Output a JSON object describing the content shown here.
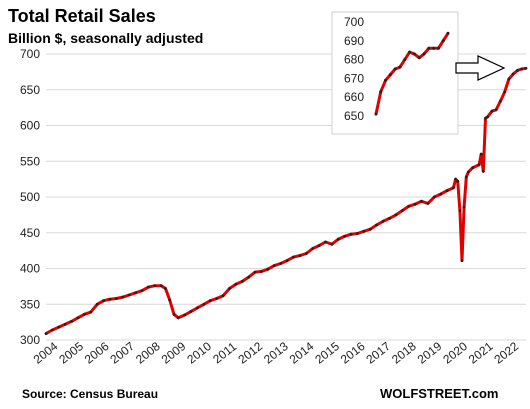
{
  "chart_data": [
    {
      "type": "line",
      "title": "Total Retail Sales",
      "subtitle": "Billion $, seasonally adjusted",
      "xlabel": "",
      "ylabel": "",
      "ylim": [
        300,
        700
      ],
      "yticks": [
        300,
        350,
        400,
        450,
        500,
        550,
        600,
        650,
        700
      ],
      "xticks": [
        "2004",
        "2005",
        "2006",
        "2007",
        "2008",
        "2009",
        "2010",
        "2011",
        "2012",
        "2013",
        "2014",
        "2015",
        "2016",
        "2017",
        "2018",
        "2019",
        "2020",
        "2021",
        "2022"
      ],
      "xlim": [
        "2004-01",
        "2022-10"
      ],
      "grid": true,
      "legend": "none",
      "colors": {
        "line": "#e00000",
        "marker": "#222222"
      },
      "series": [
        {
          "x": [
            "2004-01",
            "2004-04",
            "2004-07",
            "2004-10",
            "2005-01",
            "2005-04",
            "2005-07",
            "2005-10",
            "2006-01",
            "2006-04",
            "2006-07",
            "2006-10",
            "2007-01",
            "2007-04",
            "2007-07",
            "2007-10",
            "2008-01",
            "2008-04",
            "2008-07",
            "2008-09",
            "2008-11",
            "2009-01",
            "2009-03",
            "2009-06",
            "2009-09",
            "2009-12",
            "2010-03",
            "2010-06",
            "2010-09",
            "2010-12",
            "2011-03",
            "2011-06",
            "2011-09",
            "2011-12",
            "2012-03",
            "2012-06",
            "2012-09",
            "2012-12",
            "2013-03",
            "2013-06",
            "2013-09",
            "2013-12",
            "2014-03",
            "2014-06",
            "2014-09",
            "2014-12",
            "2015-03",
            "2015-06",
            "2015-09",
            "2015-12",
            "2016-03",
            "2016-06",
            "2016-09",
            "2016-12",
            "2017-03",
            "2017-06",
            "2017-09",
            "2017-12",
            "2018-03",
            "2018-06",
            "2018-09",
            "2018-12",
            "2019-03",
            "2019-06",
            "2019-09",
            "2019-12",
            "2020-01",
            "2020-02",
            "2020-03",
            "2020-04",
            "2020-05",
            "2020-06",
            "2020-07",
            "2020-09",
            "2020-12",
            "2021-01",
            "2021-02",
            "2021-03",
            "2021-04",
            "2021-06",
            "2021-08",
            "2021-10",
            "2021-12",
            "2022-02",
            "2022-04",
            "2022-06",
            "2022-08",
            "2022-10"
          ],
          "values": [
            309,
            314,
            318,
            322,
            326,
            331,
            336,
            339,
            350,
            355,
            357,
            358,
            360,
            363,
            366,
            369,
            374,
            376,
            376,
            372,
            356,
            336,
            331,
            335,
            340,
            345,
            350,
            355,
            358,
            362,
            372,
            378,
            382,
            388,
            395,
            396,
            399,
            404,
            407,
            411,
            416,
            418,
            421,
            428,
            432,
            437,
            434,
            441,
            445,
            448,
            449,
            452,
            455,
            461,
            466,
            470,
            475,
            481,
            487,
            490,
            494,
            491,
            500,
            504,
            509,
            513,
            525,
            522,
            481,
            411,
            486,
            528,
            535,
            541,
            545,
            560,
            536,
            610,
            612,
            620,
            622,
            634,
            647,
            665,
            672,
            677,
            679,
            680
          ]
        }
      ]
    },
    {
      "type": "line",
      "title": "",
      "xlabel": "",
      "ylabel": "",
      "ylim": [
        645,
        705
      ],
      "yticks": [
        650,
        660,
        670,
        680,
        690,
        700
      ],
      "grid": false,
      "legend": "none",
      "series": [
        {
          "x": [
            0,
            1,
            2,
            3,
            4,
            5,
            6,
            7,
            8,
            9,
            10,
            11,
            12,
            13,
            14,
            15
          ],
          "values": [
            651,
            663,
            669,
            672,
            675,
            676,
            680,
            684,
            683,
            681,
            683,
            686,
            686,
            686,
            690,
            694
          ]
        }
      ]
    }
  ],
  "footer": {
    "source": "Source: Census Bureau",
    "brand": "WOLFSTREET.com"
  }
}
